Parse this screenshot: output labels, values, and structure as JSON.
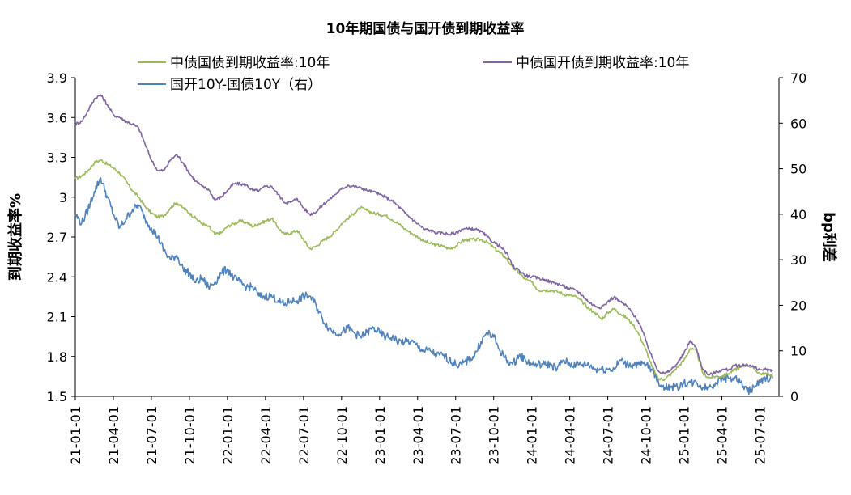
{
  "chart_data": {
    "type": "line",
    "title": "10年期国债与国开债到期收益率",
    "ylabel": "到期收益率%",
    "y2label": "bp利差",
    "ylim": [
      1.5,
      3.9
    ],
    "y2lim": [
      0,
      70
    ],
    "yticks": [
      "3.9",
      "3.6",
      "3.3",
      "3",
      "2.7",
      "2.4",
      "2.1",
      "1.8",
      "1.5"
    ],
    "y2ticks": [
      "70",
      "60",
      "50",
      "40",
      "30",
      "20",
      "10",
      "0"
    ],
    "xticks": [
      "21-01-01",
      "21-04-01",
      "21-07-01",
      "21-10-01",
      "22-01-01",
      "22-04-01",
      "22-07-01",
      "22-10-01",
      "23-01-01",
      "23-04-01",
      "23-07-01",
      "23-10-01",
      "24-01-01",
      "24-04-01",
      "24-07-01",
      "24-10-01",
      "25-01-01",
      "25-04-01",
      "25-07-01"
    ],
    "x_unit": "month index since 21-01",
    "series": [
      {
        "name": "中债国债到期收益率:10年",
        "axis": "left",
        "color": "#9bbb59",
        "x": [
          0,
          0.5,
          1,
          1.5,
          2,
          2.5,
          3,
          3.5,
          4,
          4.5,
          5,
          5.5,
          6,
          6.5,
          7,
          7.5,
          8,
          8.5,
          9,
          9.5,
          10,
          10.5,
          11,
          11.5,
          12,
          12.5,
          13,
          13.5,
          14,
          14.5,
          15,
          15.5,
          16,
          16.5,
          17,
          17.5,
          18,
          18.5,
          19,
          19.5,
          20,
          20.5,
          21,
          21.5,
          22,
          22.5,
          23,
          23.5,
          24,
          24.5,
          25,
          25.5,
          26,
          26.5,
          27,
          27.5,
          28,
          28.5,
          29,
          29.5,
          30,
          30.5,
          31,
          31.5,
          32,
          32.5,
          33,
          33.5,
          34,
          34.5,
          35,
          35.5,
          36,
          36.5,
          37,
          37.5,
          38,
          38.5,
          39,
          39.5,
          40,
          40.5,
          41,
          41.5,
          42,
          42.5,
          43,
          43.5,
          44,
          44.5,
          45,
          45.5,
          46,
          46.5,
          47,
          47.5,
          48,
          48.5,
          49,
          49.5,
          50,
          50.5,
          51,
          51.5,
          52,
          52.5,
          53,
          53.5,
          54,
          54.5,
          55
        ],
        "values": [
          3.14,
          3.16,
          3.2,
          3.26,
          3.28,
          3.25,
          3.22,
          3.18,
          3.12,
          3.05,
          3.0,
          2.93,
          2.88,
          2.85,
          2.86,
          2.92,
          2.96,
          2.92,
          2.88,
          2.84,
          2.8,
          2.78,
          2.72,
          2.73,
          2.78,
          2.8,
          2.82,
          2.81,
          2.78,
          2.8,
          2.82,
          2.84,
          2.77,
          2.72,
          2.73,
          2.75,
          2.68,
          2.61,
          2.63,
          2.67,
          2.7,
          2.74,
          2.8,
          2.84,
          2.88,
          2.92,
          2.9,
          2.88,
          2.87,
          2.86,
          2.83,
          2.8,
          2.76,
          2.73,
          2.7,
          2.67,
          2.65,
          2.64,
          2.63,
          2.61,
          2.63,
          2.67,
          2.68,
          2.68,
          2.68,
          2.66,
          2.62,
          2.58,
          2.54,
          2.47,
          2.43,
          2.38,
          2.36,
          2.3,
          2.3,
          2.3,
          2.29,
          2.27,
          2.26,
          2.25,
          2.21,
          2.16,
          2.13,
          2.08,
          2.13,
          2.16,
          2.12,
          2.09,
          2.04,
          1.96,
          1.85,
          1.72,
          1.63,
          1.63,
          1.67,
          1.72,
          1.77,
          1.86,
          1.84,
          1.67,
          1.64,
          1.65,
          1.65,
          1.67,
          1.7,
          1.72,
          1.74,
          1.71,
          1.67,
          1.67,
          1.66
        ]
      },
      {
        "name": "中债国开债到期收益率:10年",
        "axis": "left",
        "color": "#8064a2",
        "x": [
          0,
          0.5,
          1,
          1.5,
          2,
          2.5,
          3,
          3.5,
          4,
          4.5,
          5,
          5.5,
          6,
          6.5,
          7,
          7.5,
          8,
          8.5,
          9,
          9.5,
          10,
          10.5,
          11,
          11.5,
          12,
          12.5,
          13,
          13.5,
          14,
          14.5,
          15,
          15.5,
          16,
          16.5,
          17,
          17.5,
          18,
          18.5,
          19,
          19.5,
          20,
          20.5,
          21,
          21.5,
          22,
          22.5,
          23,
          23.5,
          24,
          24.5,
          25,
          25.5,
          26,
          26.5,
          27,
          27.5,
          28,
          28.5,
          29,
          29.5,
          30,
          30.5,
          31,
          31.5,
          32,
          32.5,
          33,
          33.5,
          34,
          34.5,
          35,
          35.5,
          36,
          36.5,
          37,
          37.5,
          38,
          38.5,
          39,
          39.5,
          40,
          40.5,
          41,
          41.5,
          42,
          42.5,
          43,
          43.5,
          44,
          44.5,
          45,
          45.5,
          46,
          46.5,
          47,
          47.5,
          48,
          48.5,
          49,
          49.5,
          50,
          50.5,
          51,
          51.5,
          52,
          52.5,
          53,
          53.5,
          54,
          54.5,
          55
        ],
        "values": [
          3.55,
          3.57,
          3.65,
          3.74,
          3.77,
          3.7,
          3.62,
          3.6,
          3.57,
          3.55,
          3.52,
          3.4,
          3.28,
          3.2,
          3.2,
          3.28,
          3.32,
          3.26,
          3.18,
          3.12,
          3.08,
          3.06,
          2.98,
          3.0,
          3.05,
          3.1,
          3.1,
          3.09,
          3.05,
          3.05,
          3.08,
          3.08,
          3.02,
          2.96,
          2.96,
          2.99,
          2.92,
          2.87,
          2.89,
          2.94,
          2.98,
          3.02,
          3.06,
          3.09,
          3.08,
          3.07,
          3.05,
          3.04,
          3.02,
          3.0,
          2.97,
          2.93,
          2.88,
          2.84,
          2.8,
          2.76,
          2.75,
          2.73,
          2.73,
          2.72,
          2.73,
          2.76,
          2.76,
          2.76,
          2.74,
          2.7,
          2.66,
          2.63,
          2.58,
          2.48,
          2.45,
          2.41,
          2.4,
          2.39,
          2.38,
          2.36,
          2.35,
          2.33,
          2.31,
          2.3,
          2.26,
          2.21,
          2.18,
          2.17,
          2.21,
          2.25,
          2.21,
          2.18,
          2.12,
          2.05,
          1.92,
          1.79,
          1.69,
          1.67,
          1.7,
          1.75,
          1.82,
          1.92,
          1.86,
          1.7,
          1.66,
          1.68,
          1.7,
          1.7,
          1.73,
          1.73,
          1.74,
          1.72,
          1.7,
          1.7,
          1.69
        ]
      },
      {
        "name": "国开10Y-国债10Y（右）",
        "axis": "right",
        "color": "#4f81bd",
        "x": [
          0,
          0.5,
          1,
          1.5,
          2,
          2.5,
          3,
          3.5,
          4,
          4.5,
          5,
          5.5,
          6,
          6.5,
          7,
          7.5,
          8,
          8.5,
          9,
          9.5,
          10,
          10.5,
          11,
          11.5,
          12,
          12.5,
          13,
          13.5,
          14,
          14.5,
          15,
          15.5,
          16,
          16.5,
          17,
          17.5,
          18,
          18.5,
          19,
          19.5,
          20,
          20.5,
          21,
          21.5,
          22,
          22.5,
          23,
          23.5,
          24,
          24.5,
          25,
          25.5,
          26,
          26.5,
          27,
          27.5,
          28,
          28.5,
          29,
          29.5,
          30,
          30.5,
          31,
          31.5,
          32,
          32.5,
          33,
          33.5,
          34,
          34.5,
          35,
          35.5,
          36,
          36.5,
          37,
          37.5,
          38,
          38.5,
          39,
          39.5,
          40,
          40.5,
          41,
          41.5,
          42,
          42.5,
          43,
          43.5,
          44,
          44.5,
          45,
          45.5,
          46,
          46.5,
          47,
          47.5,
          48,
          48.5,
          49,
          49.5,
          50,
          50.5,
          51,
          51.5,
          52,
          52.5,
          53,
          53.5,
          54,
          54.5,
          55
        ],
        "values": [
          40,
          38,
          41,
          45,
          48,
          44,
          40,
          37,
          39,
          41,
          42,
          39,
          37,
          35,
          32,
          30,
          31,
          28,
          27,
          25,
          26,
          24,
          25,
          27,
          28,
          26,
          25,
          24,
          24,
          22,
          22,
          22,
          21,
          20,
          21,
          21,
          22,
          22,
          20,
          17,
          15,
          14,
          14,
          15,
          14,
          13,
          14,
          15,
          14,
          13,
          13,
          12,
          12,
          12,
          11,
          10,
          10,
          9,
          9,
          8,
          7,
          7,
          8,
          9,
          12,
          14,
          13,
          10,
          8,
          7,
          9,
          8,
          7,
          7,
          7,
          7,
          6,
          8,
          7,
          7,
          7,
          7,
          6,
          6,
          6,
          6,
          8,
          7,
          7,
          7,
          7,
          6,
          3,
          2,
          2,
          2,
          3,
          3,
          3,
          2,
          2,
          3,
          4,
          4,
          4,
          3,
          1,
          2,
          3,
          4,
          4
        ]
      }
    ],
    "legend_placement": "top",
    "grid": false
  }
}
